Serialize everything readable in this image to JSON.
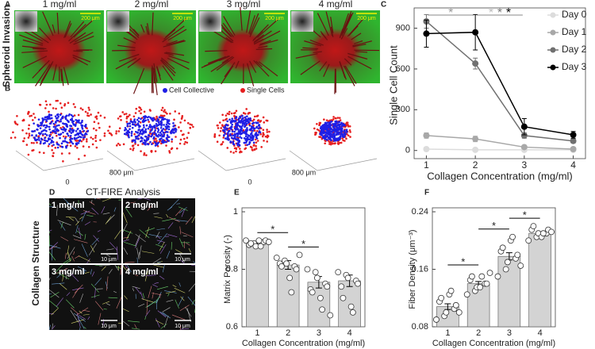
{
  "panel_a": {
    "letter": "A",
    "side_label": "Spheroid Invasion",
    "concentrations": [
      "1 mg/ml",
      "2 mg/ml",
      "3 mg/ml",
      "4 mg/ml"
    ],
    "scale_bar": "200 μm"
  },
  "panel_b": {
    "letter": "B",
    "legend": [
      {
        "name": "Cell Collective",
        "color": "#1f1fe6"
      },
      {
        "name": "Single Cells",
        "color": "#e61f1f"
      }
    ],
    "axis_labels": [
      "0",
      "800 μm"
    ]
  },
  "panel_d": {
    "letter": "D",
    "title": "CT-FIRE Analysis",
    "side_label": "Collagen Structure",
    "concentrations": [
      "1 mg/ml",
      "2 mg/ml",
      "3 mg/ml",
      "4 mg/ml"
    ],
    "scale_bar": "10 μm"
  },
  "chart_data": [
    {
      "type": "line",
      "letter": "C",
      "x": [
        1,
        2,
        3,
        4
      ],
      "xlim": [
        0.75,
        4.25
      ],
      "xticks": [
        1,
        2,
        3,
        4
      ],
      "ylim": [
        -60,
        1020
      ],
      "yticks": [
        0,
        300,
        600,
        900
      ],
      "xlabel": "Collagen Concentration (mg/ml)",
      "ylabel": "Single Cell Count",
      "legend": "upper right",
      "series": [
        {
          "name": "Day 0",
          "color": "#dcdcdc",
          "values": [
            10,
            5,
            5,
            5
          ],
          "errors": [
            5,
            5,
            5,
            5
          ]
        },
        {
          "name": "Day 1",
          "color": "#a8a8a8",
          "values": [
            110,
            85,
            25,
            10
          ],
          "errors": [
            20,
            20,
            10,
            5
          ]
        },
        {
          "name": "Day 2",
          "color": "#707070",
          "values": [
            950,
            640,
            110,
            70
          ],
          "errors": [
            50,
            40,
            20,
            15
          ]
        },
        {
          "name": "Day 3",
          "color": "#000000",
          "values": [
            860,
            870,
            175,
            115
          ],
          "errors": [
            100,
            130,
            60,
            25
          ]
        }
      ],
      "annotations": [
        {
          "between": [
            1,
            2
          ],
          "stars": [
            {
              "text": "*",
              "color": "#999999"
            }
          ]
        },
        {
          "between": [
            2,
            3
          ],
          "stars": [
            {
              "text": "*",
              "color": "#bbbbbb"
            },
            {
              "text": "*",
              "color": "#777777"
            },
            {
              "text": "*",
              "color": "#000000"
            }
          ]
        }
      ]
    },
    {
      "type": "bar",
      "letter": "E",
      "categories": [
        "1",
        "2",
        "3",
        "4"
      ],
      "values": [
        0.89,
        0.815,
        0.755,
        0.76
      ],
      "errors": [
        0.005,
        0.015,
        0.02,
        0.02
      ],
      "color": "#d3d3d3",
      "ylim": [
        0.6,
        1
      ],
      "yticks": [
        0.6,
        0.8,
        1
      ],
      "xlabel": "Collagen Concentration (mg/ml)",
      "ylabel": "Matrix Porosity (-)",
      "points": [
        [
          0.9,
          0.89,
          0.88,
          0.895,
          0.9,
          0.885,
          0.89,
          0.9,
          0.88,
          0.895
        ],
        [
          0.84,
          0.83,
          0.82,
          0.81,
          0.8,
          0.82,
          0.81,
          0.77,
          0.72,
          0.85
        ],
        [
          0.8,
          0.79,
          0.77,
          0.75,
          0.74,
          0.73,
          0.72,
          0.7,
          0.66,
          0.64
        ],
        [
          0.79,
          0.78,
          0.77,
          0.76,
          0.75,
          0.74,
          0.7,
          0.67,
          0.65
        ]
      ],
      "annotations": [
        {
          "between": [
            1,
            2
          ],
          "text": "*"
        },
        {
          "between": [
            2,
            3
          ],
          "text": "*"
        }
      ]
    },
    {
      "type": "bar",
      "letter": "F",
      "categories": [
        "1",
        "2",
        "3",
        "4"
      ],
      "values": [
        0.108,
        0.14,
        0.178,
        0.21
      ],
      "errors": [
        0.004,
        0.003,
        0.005,
        0.002
      ],
      "color": "#d3d3d3",
      "ylim": [
        0.08,
        0.24
      ],
      "yticks": [
        0.08,
        0.16,
        0.24
      ],
      "xlabel": "Collagen Concentration (mg/ml)",
      "ylabel": "Fiber Density (μm⁻³)",
      "points": [
        [
          0.09,
          0.095,
          0.1,
          0.105,
          0.11,
          0.115,
          0.12,
          0.125,
          0.13,
          0.1
        ],
        [
          0.125,
          0.13,
          0.135,
          0.14,
          0.14,
          0.145,
          0.15,
          0.135,
          0.15,
          0.155
        ],
        [
          0.15,
          0.16,
          0.17,
          0.175,
          0.18,
          0.185,
          0.19,
          0.2,
          0.205,
          0.165
        ],
        [
          0.2,
          0.205,
          0.21,
          0.21,
          0.215,
          0.215,
          0.22,
          0.205,
          0.21,
          0.212
        ]
      ],
      "annotations": [
        {
          "between": [
            1,
            2
          ],
          "text": "*"
        },
        {
          "between": [
            2,
            3
          ],
          "text": "*"
        },
        {
          "between": [
            3,
            4
          ],
          "text": "*"
        }
      ]
    }
  ]
}
